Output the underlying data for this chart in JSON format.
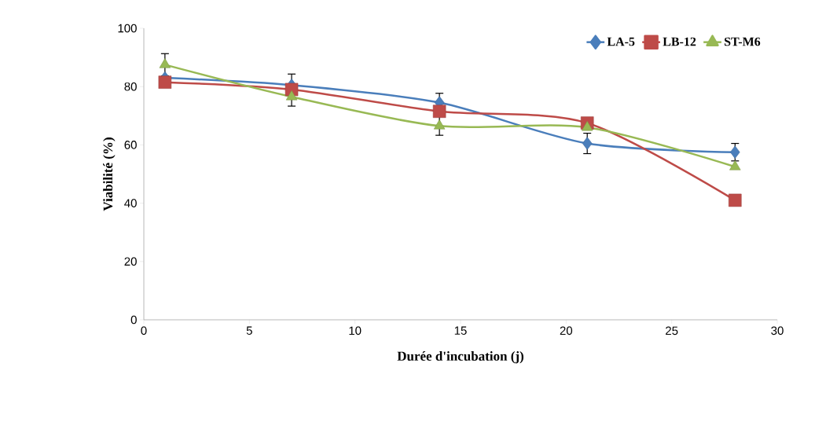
{
  "chart_data": {
    "type": "line",
    "xlabel": "Durée d'incubation (j)",
    "ylabel": "Viabilité (%)",
    "x": [
      1,
      7,
      14,
      21,
      28
    ],
    "series": [
      {
        "name": "LA-5",
        "color": "#4a7ebb",
        "marker": "diamond",
        "values": [
          83,
          80.5,
          74.5,
          60.5,
          57.5
        ],
        "errors": [
          null,
          [
            80.5,
            84.3
          ],
          3.2,
          3.5,
          3
        ]
      },
      {
        "name": "LB-12",
        "color": "#be4b48",
        "marker": "square",
        "values": [
          81.5,
          79,
          71.5,
          67.5,
          41
        ],
        "errors": [
          null,
          null,
          null,
          null,
          null
        ]
      },
      {
        "name": "ST-M6",
        "color": "#98b954",
        "marker": "triangle",
        "values": [
          87.5,
          76.5,
          66.5,
          66,
          52.5
        ],
        "errors": [
          3.8,
          [
            73.3,
            76.5
          ],
          3.2,
          null,
          null
        ]
      }
    ],
    "xlim": [
      0,
      30
    ],
    "ylim": [
      0,
      100
    ],
    "xticks": [
      0,
      5,
      10,
      15,
      20,
      25,
      30
    ],
    "yticks": [
      0,
      20,
      40,
      60,
      80,
      100
    ],
    "grid": false,
    "legend": "top right",
    "line_style": "solid"
  }
}
